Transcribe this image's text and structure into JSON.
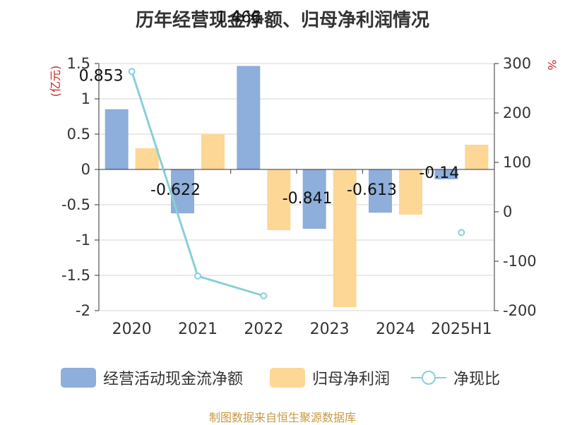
{
  "title": "历年经营现金净额、归母净利润情况",
  "source": "制图数据来自恒生聚源数据库",
  "chart_data": {
    "type": "bar",
    "categories": [
      "2020",
      "2021",
      "2022",
      "2023",
      "2024",
      "2025H1"
    ],
    "series": [
      {
        "name": "经营活动现金流净额",
        "type": "bar",
        "axis": "left",
        "color": "#8eaedb",
        "values": [
          0.853,
          -0.622,
          1.466,
          -0.841,
          -0.613,
          -0.14
        ],
        "labels": [
          "0.853",
          "-0.622",
          "1.466",
          "-0.841",
          "-0.613",
          "-0.14"
        ]
      },
      {
        "name": "归母净利润",
        "type": "bar",
        "axis": "left",
        "color": "#fdd795",
        "values": [
          0.3,
          0.5,
          -0.86,
          -1.95,
          -0.64,
          0.35
        ]
      },
      {
        "name": "净现比",
        "type": "line",
        "axis": "right",
        "color": "#86d0d6",
        "values": [
          284,
          -130,
          -170,
          null,
          null,
          -42
        ]
      }
    ],
    "y_left": {
      "label": "(亿元)",
      "ylim": [
        -2,
        1.5
      ],
      "ticks": [
        1.5,
        1,
        0.5,
        0,
        -0.5,
        -1,
        -1.5,
        -2
      ],
      "tick_labels": [
        "1.5",
        "1",
        "0.5",
        "0",
        "-0.5",
        "-1",
        "-1.5",
        "-2"
      ]
    },
    "y_right": {
      "label": "%",
      "ylim": [
        -200,
        300
      ],
      "ticks": [
        300,
        200,
        100,
        0,
        -100,
        -200
      ],
      "tick_labels": [
        "300",
        "200",
        "100",
        "0",
        "-100",
        "-200"
      ]
    },
    "grid": true,
    "legend": "bottom"
  }
}
